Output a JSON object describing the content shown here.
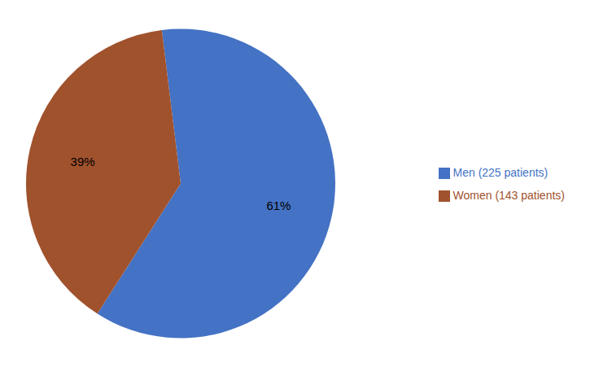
{
  "chart_data": {
    "type": "pie",
    "categories": [
      "Men (225 patients)",
      "Women (143 patients)"
    ],
    "values": [
      61,
      39
    ],
    "value_labels": [
      "61%",
      "39%"
    ],
    "colors": [
      "#4472C4",
      "#A0522D"
    ],
    "data_labels": true,
    "legend": "right"
  }
}
